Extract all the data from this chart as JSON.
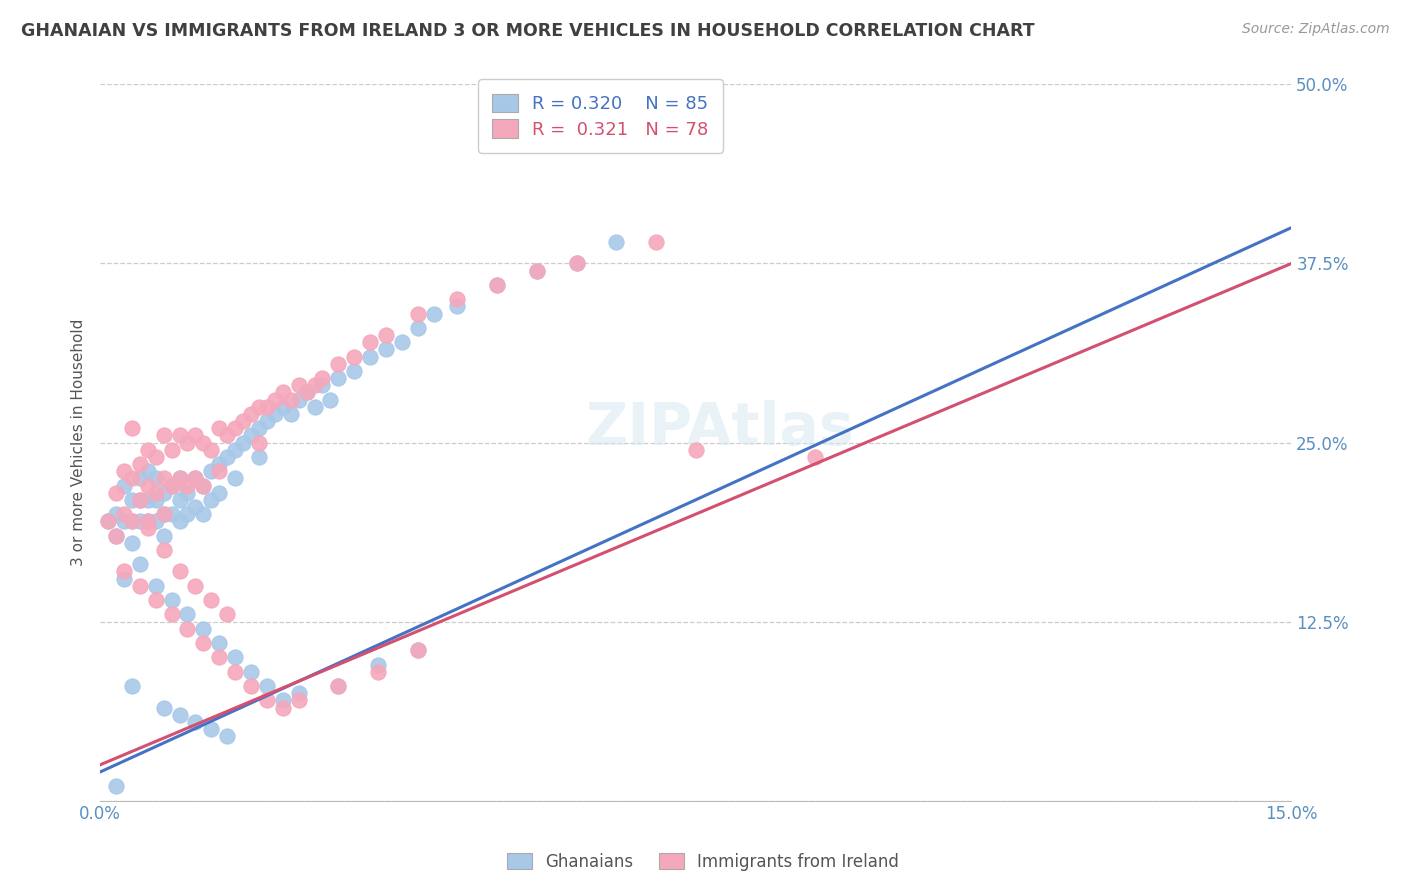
{
  "title": "GHANAIAN VS IMMIGRANTS FROM IRELAND 3 OR MORE VEHICLES IN HOUSEHOLD CORRELATION CHART",
  "source": "Source: ZipAtlas.com",
  "ylabel": "3 or more Vehicles in Household",
  "xlim": [
    0.0,
    0.15
  ],
  "ylim": [
    0.0,
    0.5
  ],
  "xticks": [
    0.0,
    0.05,
    0.1,
    0.15
  ],
  "xticklabels": [
    "0.0%",
    "",
    "",
    "15.0%"
  ],
  "yticks": [
    0.0,
    0.125,
    0.25,
    0.375,
    0.5
  ],
  "yticklabels": [
    "",
    "12.5%",
    "25.0%",
    "37.5%",
    "50.0%"
  ],
  "ghanaian_color": "#a8c8e8",
  "ireland_color": "#f5a8bc",
  "ghanaian_line_color": "#4472c4",
  "ireland_line_color": "#d45070",
  "legend_R1": "0.320",
  "legend_N1": "85",
  "legend_R2": "0.321",
  "legend_N2": "78",
  "legend_label1": "Ghanaians",
  "legend_label2": "Immigrants from Ireland",
  "watermark": "ZIPAtlas",
  "grid_color": "#cccccc",
  "background_color": "#ffffff",
  "title_color": "#404040",
  "reg_line_g_x0": 0.0,
  "reg_line_g_y0": 0.02,
  "reg_line_g_x1": 0.15,
  "reg_line_g_y1": 0.4,
  "reg_line_i_x0": 0.0,
  "reg_line_i_y0": 0.025,
  "reg_line_i_x1": 0.15,
  "reg_line_i_y1": 0.375,
  "ghanaian_x": [
    0.001,
    0.002,
    0.002,
    0.003,
    0.003,
    0.004,
    0.004,
    0.004,
    0.005,
    0.005,
    0.005,
    0.006,
    0.006,
    0.006,
    0.007,
    0.007,
    0.007,
    0.008,
    0.008,
    0.008,
    0.009,
    0.009,
    0.01,
    0.01,
    0.01,
    0.011,
    0.011,
    0.012,
    0.012,
    0.013,
    0.013,
    0.014,
    0.014,
    0.015,
    0.015,
    0.016,
    0.017,
    0.017,
    0.018,
    0.019,
    0.02,
    0.02,
    0.021,
    0.022,
    0.023,
    0.024,
    0.025,
    0.026,
    0.027,
    0.028,
    0.029,
    0.03,
    0.032,
    0.034,
    0.036,
    0.038,
    0.04,
    0.042,
    0.045,
    0.05,
    0.055,
    0.06,
    0.065,
    0.003,
    0.005,
    0.007,
    0.009,
    0.011,
    0.013,
    0.015,
    0.017,
    0.019,
    0.021,
    0.023,
    0.025,
    0.03,
    0.035,
    0.04,
    0.008,
    0.01,
    0.012,
    0.014,
    0.016,
    0.002,
    0.004
  ],
  "ghanaian_y": [
    0.195,
    0.2,
    0.185,
    0.22,
    0.195,
    0.21,
    0.195,
    0.18,
    0.225,
    0.21,
    0.195,
    0.23,
    0.21,
    0.195,
    0.225,
    0.21,
    0.195,
    0.215,
    0.2,
    0.185,
    0.22,
    0.2,
    0.225,
    0.21,
    0.195,
    0.215,
    0.2,
    0.225,
    0.205,
    0.22,
    0.2,
    0.23,
    0.21,
    0.235,
    0.215,
    0.24,
    0.245,
    0.225,
    0.25,
    0.255,
    0.26,
    0.24,
    0.265,
    0.27,
    0.275,
    0.27,
    0.28,
    0.285,
    0.275,
    0.29,
    0.28,
    0.295,
    0.3,
    0.31,
    0.315,
    0.32,
    0.33,
    0.34,
    0.345,
    0.36,
    0.37,
    0.375,
    0.39,
    0.155,
    0.165,
    0.15,
    0.14,
    0.13,
    0.12,
    0.11,
    0.1,
    0.09,
    0.08,
    0.07,
    0.075,
    0.08,
    0.095,
    0.105,
    0.065,
    0.06,
    0.055,
    0.05,
    0.045,
    0.01,
    0.08
  ],
  "ireland_x": [
    0.001,
    0.002,
    0.002,
    0.003,
    0.003,
    0.004,
    0.004,
    0.005,
    0.005,
    0.006,
    0.006,
    0.006,
    0.007,
    0.007,
    0.008,
    0.008,
    0.008,
    0.009,
    0.009,
    0.01,
    0.01,
    0.011,
    0.011,
    0.012,
    0.012,
    0.013,
    0.013,
    0.014,
    0.015,
    0.015,
    0.016,
    0.017,
    0.018,
    0.019,
    0.02,
    0.021,
    0.022,
    0.023,
    0.024,
    0.025,
    0.026,
    0.027,
    0.028,
    0.03,
    0.032,
    0.034,
    0.036,
    0.04,
    0.045,
    0.05,
    0.055,
    0.06,
    0.07,
    0.003,
    0.005,
    0.007,
    0.009,
    0.011,
    0.013,
    0.015,
    0.017,
    0.019,
    0.021,
    0.023,
    0.025,
    0.03,
    0.035,
    0.04,
    0.006,
    0.008,
    0.01,
    0.012,
    0.014,
    0.016,
    0.004,
    0.02,
    0.075,
    0.09
  ],
  "ireland_y": [
    0.195,
    0.215,
    0.185,
    0.23,
    0.2,
    0.225,
    0.195,
    0.235,
    0.21,
    0.245,
    0.22,
    0.195,
    0.24,
    0.215,
    0.255,
    0.225,
    0.2,
    0.245,
    0.22,
    0.255,
    0.225,
    0.25,
    0.22,
    0.255,
    0.225,
    0.25,
    0.22,
    0.245,
    0.26,
    0.23,
    0.255,
    0.26,
    0.265,
    0.27,
    0.275,
    0.275,
    0.28,
    0.285,
    0.28,
    0.29,
    0.285,
    0.29,
    0.295,
    0.305,
    0.31,
    0.32,
    0.325,
    0.34,
    0.35,
    0.36,
    0.37,
    0.375,
    0.39,
    0.16,
    0.15,
    0.14,
    0.13,
    0.12,
    0.11,
    0.1,
    0.09,
    0.08,
    0.07,
    0.065,
    0.07,
    0.08,
    0.09,
    0.105,
    0.19,
    0.175,
    0.16,
    0.15,
    0.14,
    0.13,
    0.26,
    0.25,
    0.245,
    0.24
  ]
}
